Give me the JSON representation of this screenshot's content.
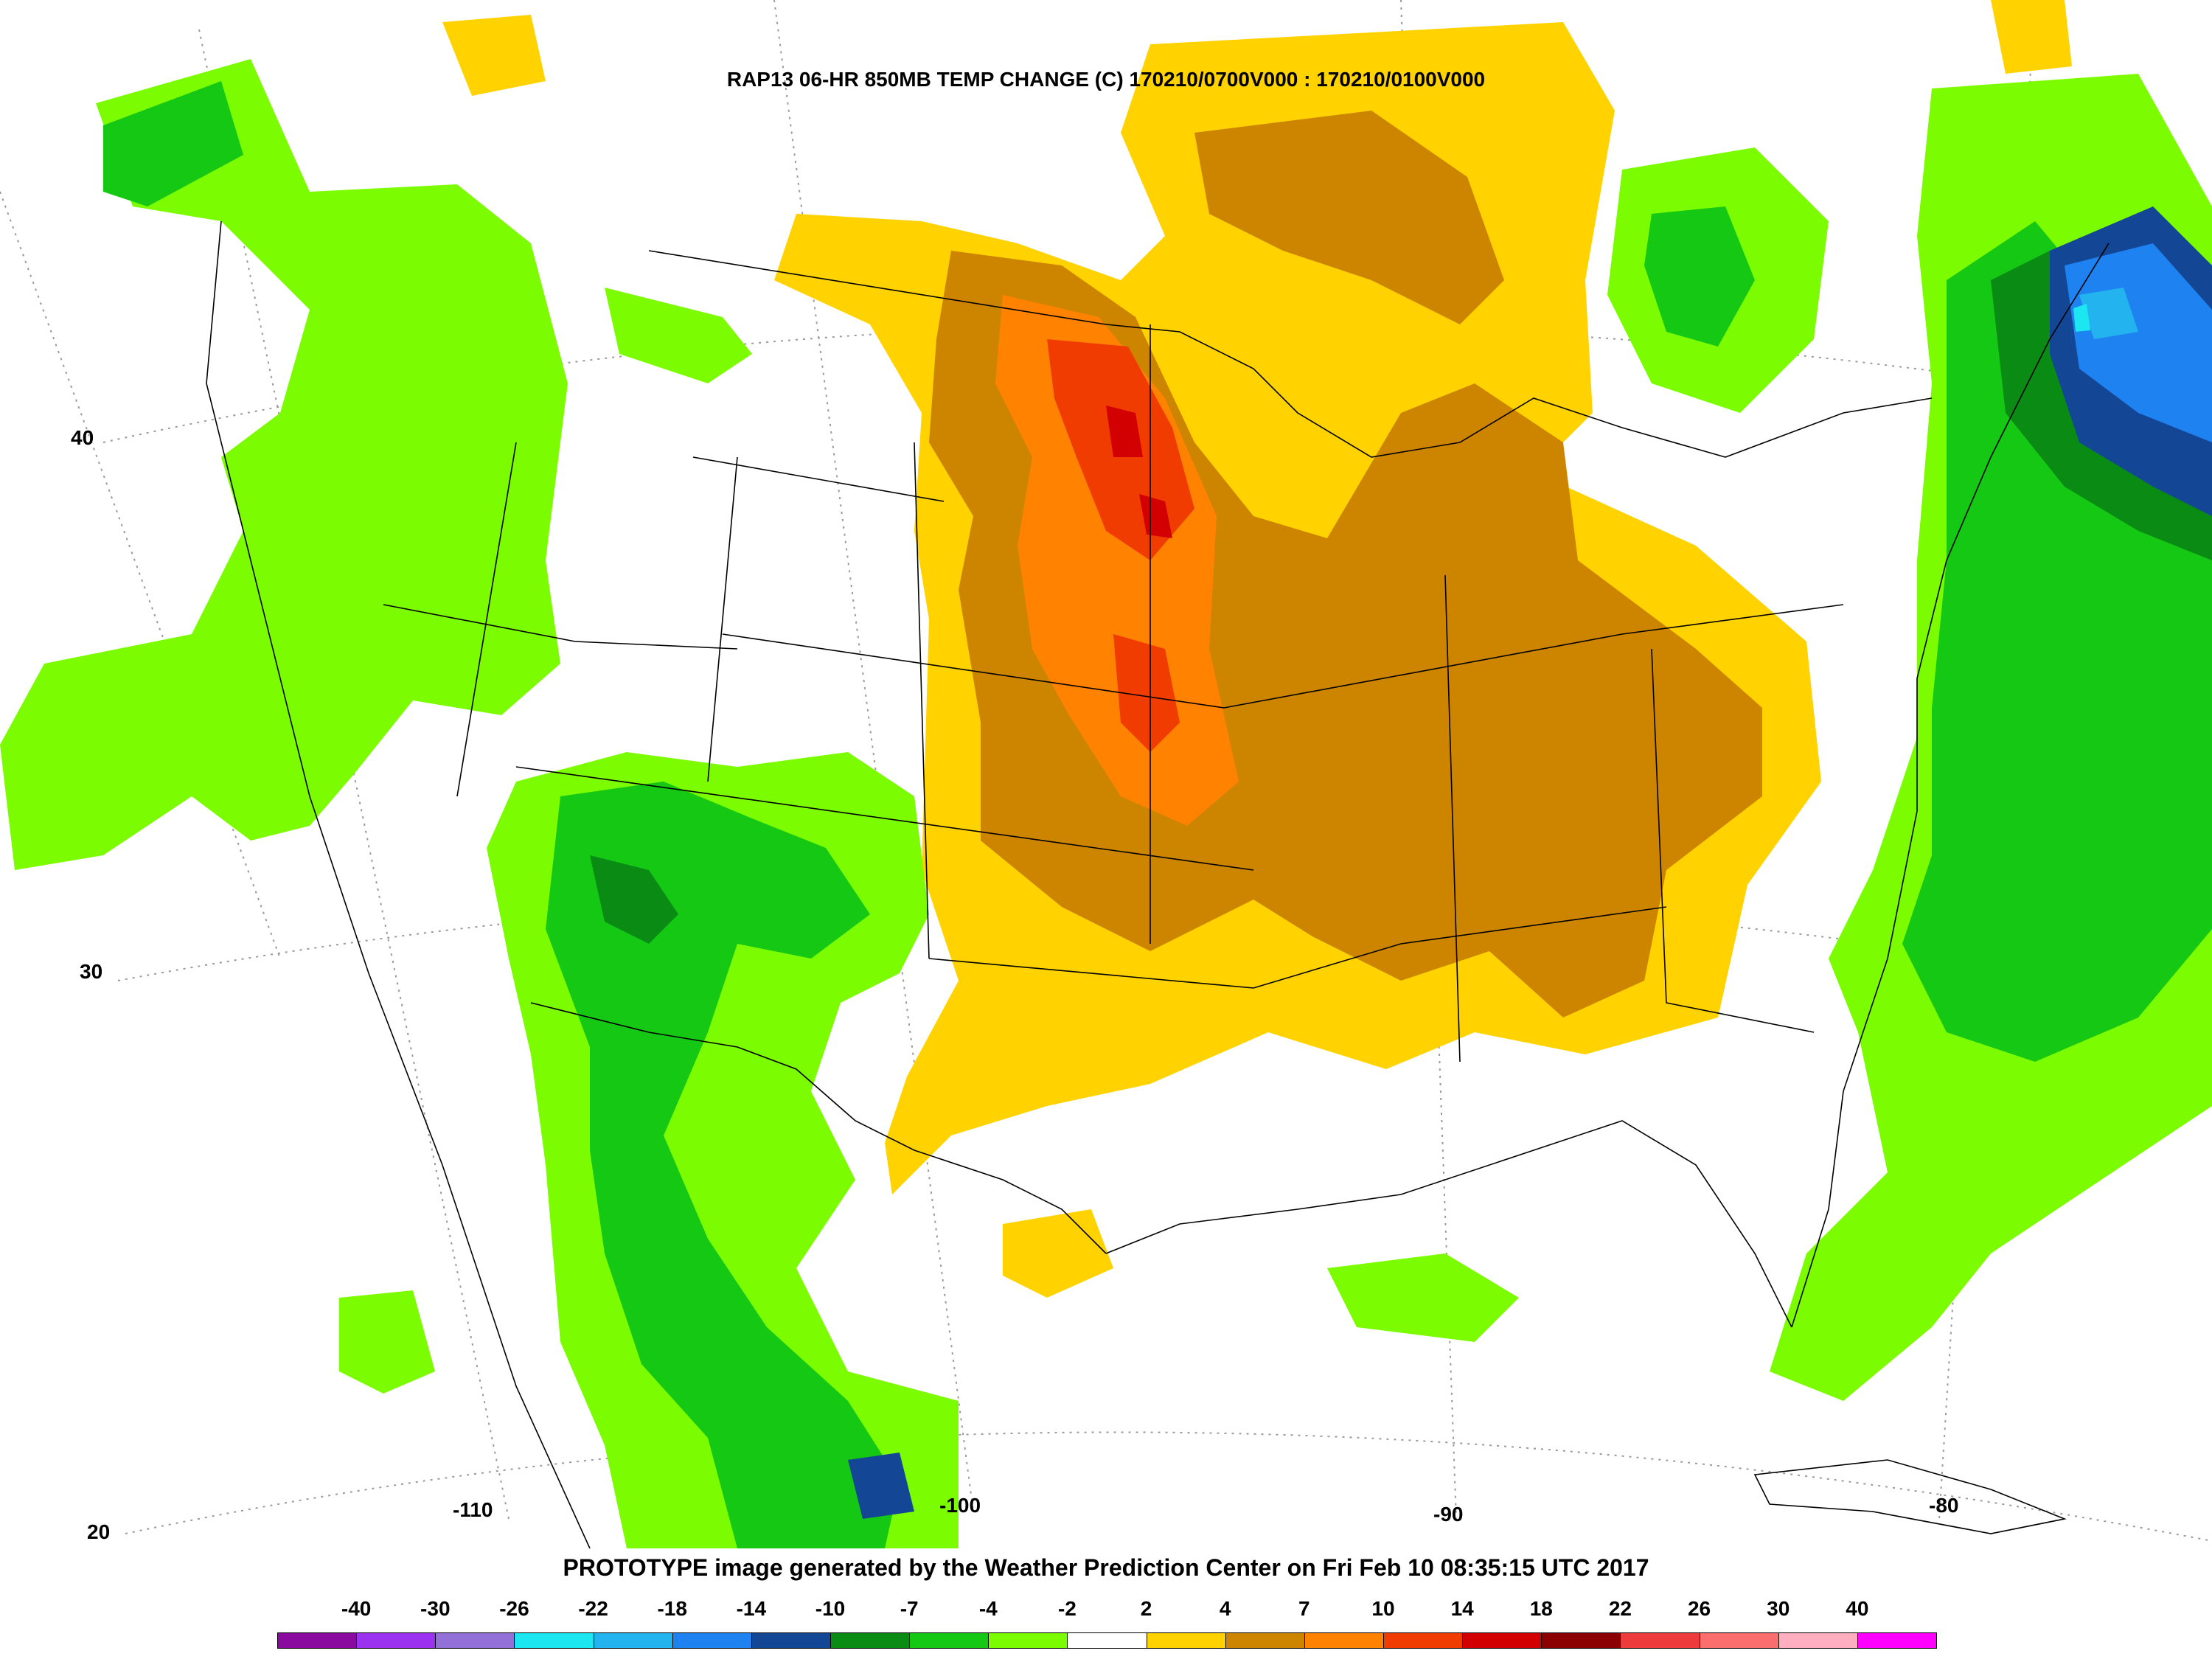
{
  "title": "RAP13 06-HR 850MB TEMP CHANGE (C) 170210/0700V000 : 170210/0100V000",
  "footer": "PROTOTYPE image generated by the Weather Prediction Center on Fri Feb 10 08:35:15 UTC 2017",
  "latitude_labels": [
    "40",
    "30",
    "20"
  ],
  "longitude_labels": [
    "-110",
    "-100",
    "-90",
    "-80"
  ],
  "legend": {
    "labels": [
      "-40",
      "-30",
      "-26",
      "-22",
      "-18",
      "-14",
      "-10",
      "-7",
      "-4",
      "-2",
      "2",
      "4",
      "7",
      "10",
      "14",
      "18",
      "22",
      "26",
      "30",
      "40"
    ],
    "colors": [
      "#8a0aa0",
      "#9b32f0",
      "#9270d8",
      "#1ce6f0",
      "#23b4f0",
      "#1e82f0",
      "#144696",
      "#0a8c14",
      "#14c814",
      "#7cfc00",
      "#ffffff",
      "#ffd200",
      "#cd8500",
      "#ff8200",
      "#f03c00",
      "#d20000",
      "#8b0000",
      "#ee3b3b",
      "#fa6e6e",
      "#ffaec0",
      "#ff00ff"
    ]
  },
  "colors": {
    "warm_2_4": "#ffd200",
    "warm_4_7": "#cd8500",
    "warm_7_10": "#ff8200",
    "warm_10_14": "#f03c00",
    "warm_14_18": "#d20000",
    "cool_2": "#7cfc00",
    "cool_4": "#14c814",
    "cool_7": "#0a8c14",
    "cool_10": "#144696",
    "cool_14": "#1e82f0",
    "cool_18": "#23b4f0",
    "cool_22": "#1ce6f0"
  }
}
